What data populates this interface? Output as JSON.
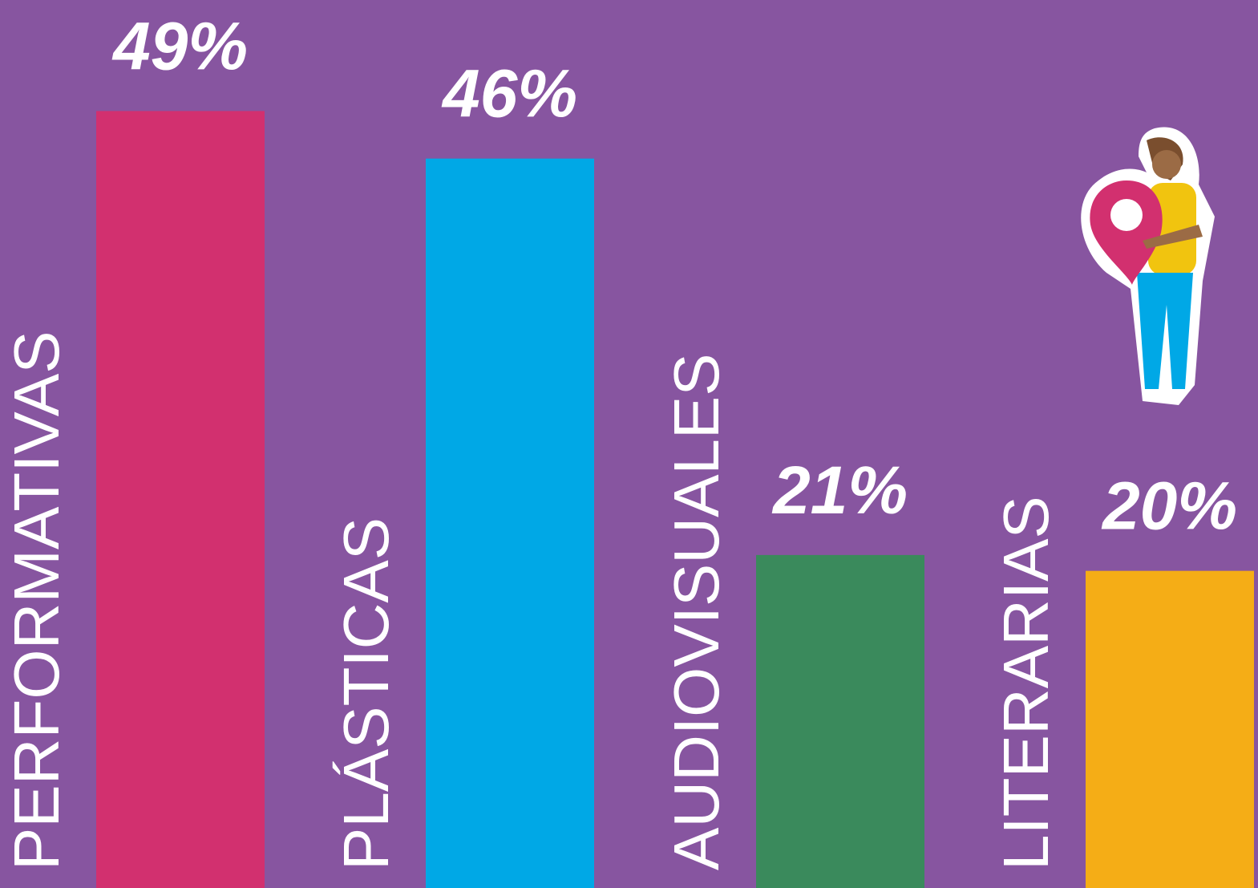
{
  "chart_data": {
    "type": "bar",
    "categories": [
      "PERFORMATIVAS",
      "PLÁSTICAS",
      "AUDIOVISUALES",
      "LITERARIAS"
    ],
    "values": [
      49,
      46,
      21,
      20
    ],
    "value_labels": [
      "49%",
      "46%",
      "21%",
      "20%"
    ],
    "colors": [
      "#d2306f",
      "#00a8e6",
      "#3a8a5c",
      "#f5ad16"
    ],
    "ylim": [
      0,
      56
    ]
  }
}
